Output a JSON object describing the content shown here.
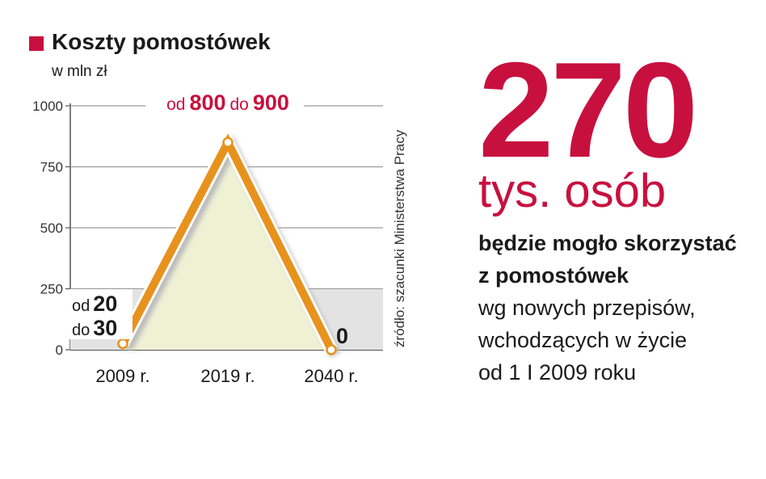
{
  "header": {
    "title": "Koszty pomostówek",
    "unit": "w mln zł"
  },
  "source_note": "źródło: szacunki Ministerstwa Pracy",
  "chart_data": {
    "type": "line",
    "categories": [
      "2009 r.",
      "2019 r.",
      "2040 r."
    ],
    "series": [
      {
        "values": [
          25,
          850,
          0
        ],
        "ranges": [
          [
            20,
            30
          ],
          [
            800,
            900
          ],
          [
            0,
            0
          ]
        ]
      }
    ],
    "ylim": [
      0,
      1000
    ],
    "yticks": [
      0,
      250,
      500,
      750,
      1000
    ],
    "grid": true,
    "colors": {
      "line": "#e8921e",
      "fill": "#eef1d4",
      "band": "#e3e3e3",
      "accent": "#c8103e"
    },
    "annotations": {
      "a2009_l1_prefix": "od",
      "a2009_l1_value": "20",
      "a2009_l2_prefix": "do",
      "a2009_l2_value": "30",
      "a2019_p1": "od",
      "a2019_v1": "800",
      "a2019_p2": "do",
      "a2019_v2": "900",
      "a2040": "0"
    }
  },
  "stat": {
    "number": "270",
    "unit": "tys. osób",
    "line1": "będzie mogło skorzystać",
    "line2": "z pomostówek",
    "line3": "wg nowych przepisów,",
    "line4": "wchodzących w życie",
    "line5": "od 1 I 2009 roku"
  }
}
